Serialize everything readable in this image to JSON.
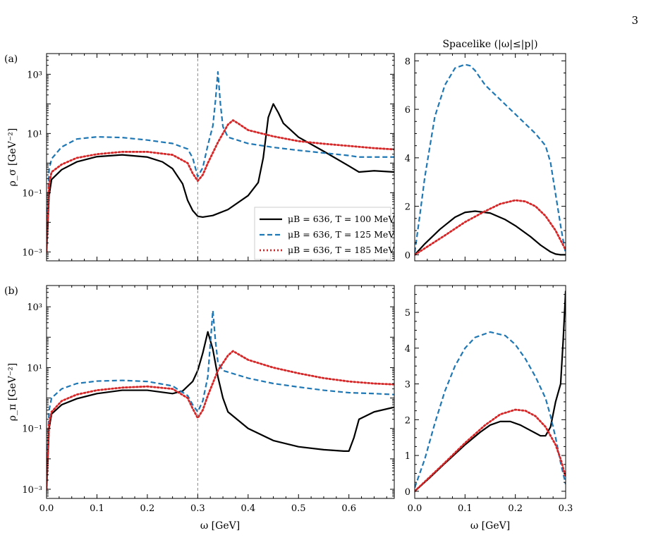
{
  "page_number": "3",
  "colors": {
    "black": "#000000",
    "blue": "#1f77b4",
    "red": "#d62728",
    "vline": "#888888"
  },
  "chart_data": [
    {
      "type": "line",
      "panel": "(a)",
      "title": "",
      "xlabel": "",
      "ylabel": "ρ_σ [GeV⁻²]",
      "yscale": "log",
      "xlim": [
        0.0,
        0.69
      ],
      "ylim": [
        0.0005,
        5000
      ],
      "xticks": [
        0.0,
        0.1,
        0.2,
        0.3,
        0.4,
        0.5,
        0.6
      ],
      "yticks": [
        {
          "v": 0.001,
          "l": "10⁻³"
        },
        {
          "v": 0.1,
          "l": "10⁻¹"
        },
        {
          "v": 10,
          "l": "10¹"
        },
        {
          "v": 1000,
          "l": "10³"
        }
      ],
      "xticklabels_shown": false,
      "vline": 0.3,
      "legend": "center-right",
      "series": [
        {
          "name": "μB = 636,  T = 100 MeV",
          "color": "#000000",
          "dash": "solid",
          "x": [
            0.0,
            0.005,
            0.01,
            0.03,
            0.06,
            0.1,
            0.15,
            0.2,
            0.23,
            0.25,
            0.27,
            0.28,
            0.29,
            0.3,
            0.31,
            0.33,
            0.36,
            0.4,
            0.42,
            0.43,
            0.44,
            0.45,
            0.46,
            0.47,
            0.5,
            0.55,
            0.6,
            0.62,
            0.65,
            0.69
          ],
          "y": [
            0.001,
            0.08,
            0.28,
            0.6,
            1.1,
            1.65,
            1.9,
            1.6,
            1.1,
            0.65,
            0.2,
            0.055,
            0.025,
            0.016,
            0.015,
            0.017,
            0.027,
            0.08,
            0.22,
            1.5,
            35,
            100,
            50,
            22,
            7.5,
            2.5,
            0.8,
            0.5,
            0.55,
            0.5
          ]
        },
        {
          "name": "μB = 636,  T = 125 MeV",
          "color": "#1f77b4",
          "dash": "dashed",
          "x": [
            0.0,
            0.005,
            0.01,
            0.03,
            0.06,
            0.1,
            0.15,
            0.2,
            0.25,
            0.28,
            0.29,
            0.3,
            0.31,
            0.32,
            0.33,
            0.335,
            0.34,
            0.345,
            0.35,
            0.36,
            0.4,
            0.45,
            0.5,
            0.55,
            0.6,
            0.62,
            0.65,
            0.69
          ],
          "y": [
            0.002,
            0.6,
            1.4,
            3.5,
            6.5,
            7.7,
            7.3,
            6.0,
            4.6,
            3.0,
            1.5,
            0.35,
            0.7,
            4.0,
            18,
            120,
            1200,
            100,
            17,
            7.5,
            4.6,
            3.4,
            2.7,
            2.2,
            1.8,
            1.6,
            1.6,
            1.6
          ]
        },
        {
          "name": "μB = 636,  T = 185 MeV",
          "color": "#d62728",
          "dash": "dotted",
          "x": [
            0.0,
            0.005,
            0.01,
            0.03,
            0.06,
            0.1,
            0.15,
            0.2,
            0.25,
            0.28,
            0.29,
            0.3,
            0.31,
            0.32,
            0.34,
            0.36,
            0.37,
            0.38,
            0.4,
            0.45,
            0.5,
            0.55,
            0.6,
            0.65,
            0.69
          ],
          "y": [
            0.001,
            0.2,
            0.5,
            0.9,
            1.5,
            2.0,
            2.4,
            2.4,
            1.9,
            1.0,
            0.45,
            0.25,
            0.4,
            1.0,
            5.0,
            20,
            28,
            22,
            13,
            8.0,
            5.5,
            4.5,
            3.8,
            3.2,
            2.9
          ]
        }
      ]
    },
    {
      "type": "line",
      "panel": "(a) right",
      "title": "Spacelike (|ω|≤|p|)",
      "xlabel": "",
      "ylabel": "",
      "yscale": "linear",
      "xlim": [
        0.0,
        0.3
      ],
      "ylim": [
        -0.25,
        8.3
      ],
      "xticks": [
        0.0,
        0.1,
        0.2,
        0.3
      ],
      "yticks": [
        {
          "v": 0,
          "l": "0"
        },
        {
          "v": 2,
          "l": "2"
        },
        {
          "v": 4,
          "l": "4"
        },
        {
          "v": 6,
          "l": "6"
        },
        {
          "v": 8,
          "l": "8"
        }
      ],
      "xticklabels_shown": false,
      "series": [
        {
          "color": "#000000",
          "dash": "solid",
          "x": [
            0.0,
            0.02,
            0.05,
            0.08,
            0.1,
            0.12,
            0.15,
            0.18,
            0.2,
            0.23,
            0.25,
            0.27,
            0.28,
            0.29,
            0.3
          ],
          "y": [
            0.0,
            0.45,
            1.05,
            1.55,
            1.75,
            1.8,
            1.72,
            1.45,
            1.2,
            0.75,
            0.4,
            0.12,
            0.03,
            0.0,
            0.0
          ]
        },
        {
          "color": "#1f77b4",
          "dash": "dashed",
          "x": [
            0.0,
            0.01,
            0.02,
            0.04,
            0.06,
            0.08,
            0.1,
            0.11,
            0.12,
            0.14,
            0.16,
            0.2,
            0.24,
            0.26,
            0.27,
            0.28,
            0.29,
            0.295,
            0.3
          ],
          "y": [
            0.1,
            1.6,
            3.2,
            5.7,
            7.0,
            7.7,
            7.85,
            7.8,
            7.6,
            7.0,
            6.6,
            5.8,
            5.0,
            4.5,
            3.8,
            2.5,
            1.2,
            0.6,
            0.05
          ]
        },
        {
          "color": "#d62728",
          "dash": "dotted",
          "x": [
            0.0,
            0.03,
            0.06,
            0.1,
            0.14,
            0.17,
            0.2,
            0.22,
            0.24,
            0.26,
            0.28,
            0.29,
            0.3
          ],
          "y": [
            0.0,
            0.4,
            0.8,
            1.35,
            1.8,
            2.1,
            2.25,
            2.2,
            2.0,
            1.6,
            1.0,
            0.6,
            0.2
          ]
        }
      ]
    },
    {
      "type": "line",
      "panel": "(b)",
      "title": "",
      "xlabel": "ω [GeV]",
      "ylabel": "ρ_π [GeV⁻²]",
      "yscale": "log",
      "xlim": [
        0.0,
        0.69
      ],
      "ylim": [
        0.0005,
        5000
      ],
      "xticks": [
        0.0,
        0.1,
        0.2,
        0.3,
        0.4,
        0.5,
        0.6
      ],
      "yticks": [
        {
          "v": 0.001,
          "l": "10⁻³"
        },
        {
          "v": 0.1,
          "l": "10⁻¹"
        },
        {
          "v": 10,
          "l": "10¹"
        },
        {
          "v": 1000,
          "l": "10³"
        }
      ],
      "xticklabels_shown": true,
      "vline": 0.3,
      "series": [
        {
          "color": "#000000",
          "dash": "solid",
          "x": [
            0.0,
            0.005,
            0.01,
            0.03,
            0.06,
            0.1,
            0.15,
            0.2,
            0.25,
            0.27,
            0.29,
            0.3,
            0.31,
            0.32,
            0.33,
            0.34,
            0.35,
            0.36,
            0.4,
            0.45,
            0.5,
            0.55,
            0.59,
            0.6,
            0.61,
            0.62,
            0.65,
            0.69
          ],
          "y": [
            0.001,
            0.1,
            0.3,
            0.6,
            0.95,
            1.4,
            1.8,
            1.8,
            1.4,
            1.7,
            3.5,
            8.0,
            30,
            150,
            40,
            5.0,
            1.0,
            0.35,
            0.1,
            0.04,
            0.025,
            0.02,
            0.018,
            0.018,
            0.05,
            0.2,
            0.35,
            0.5
          ]
        },
        {
          "color": "#1f77b4",
          "dash": "dashed",
          "x": [
            0.0,
            0.005,
            0.01,
            0.03,
            0.06,
            0.1,
            0.15,
            0.2,
            0.25,
            0.28,
            0.29,
            0.3,
            0.31,
            0.32,
            0.325,
            0.33,
            0.335,
            0.34,
            0.35,
            0.4,
            0.45,
            0.5,
            0.55,
            0.6,
            0.65,
            0.69
          ],
          "y": [
            0.002,
            0.4,
            1.0,
            2.0,
            3.0,
            3.6,
            3.8,
            3.5,
            2.5,
            1.2,
            0.6,
            0.35,
            0.8,
            5.0,
            60,
            750,
            80,
            15,
            8.0,
            4.5,
            3.0,
            2.3,
            1.8,
            1.5,
            1.4,
            1.3
          ]
        },
        {
          "color": "#d62728",
          "dash": "dotted",
          "x": [
            0.0,
            0.005,
            0.01,
            0.03,
            0.06,
            0.1,
            0.15,
            0.2,
            0.25,
            0.28,
            0.29,
            0.3,
            0.31,
            0.32,
            0.34,
            0.36,
            0.37,
            0.38,
            0.4,
            0.45,
            0.5,
            0.55,
            0.6,
            0.65,
            0.69
          ],
          "y": [
            0.001,
            0.15,
            0.35,
            0.8,
            1.3,
            1.8,
            2.2,
            2.4,
            2.0,
            1.0,
            0.45,
            0.22,
            0.4,
            1.2,
            8.0,
            25,
            35,
            28,
            18,
            10,
            6.5,
            4.5,
            3.5,
            3.0,
            2.8
          ]
        }
      ]
    },
    {
      "type": "line",
      "panel": "(b) right",
      "title": "",
      "xlabel": "ω [GeV]",
      "ylabel": "",
      "yscale": "linear",
      "xlim": [
        0.0,
        0.3
      ],
      "ylim": [
        -0.2,
        5.75
      ],
      "xticks": [
        0.0,
        0.1,
        0.2,
        0.3
      ],
      "yticks": [
        {
          "v": 0,
          "l": "0"
        },
        {
          "v": 1,
          "l": "1"
        },
        {
          "v": 2,
          "l": "2"
        },
        {
          "v": 3,
          "l": "3"
        },
        {
          "v": 4,
          "l": "4"
        },
        {
          "v": 5,
          "l": "5"
        }
      ],
      "xticklabels_shown": true,
      "series": [
        {
          "color": "#000000",
          "dash": "solid",
          "x": [
            0.0,
            0.03,
            0.06,
            0.1,
            0.13,
            0.15,
            0.17,
            0.19,
            0.21,
            0.23,
            0.25,
            0.26,
            0.27,
            0.28,
            0.29,
            0.295,
            0.3
          ],
          "y": [
            0.0,
            0.38,
            0.78,
            1.3,
            1.65,
            1.85,
            1.95,
            1.95,
            1.85,
            1.7,
            1.55,
            1.55,
            1.8,
            2.5,
            3.0,
            4.2,
            5.6
          ]
        },
        {
          "color": "#1f77b4",
          "dash": "dashed",
          "x": [
            0.0,
            0.02,
            0.04,
            0.06,
            0.08,
            0.1,
            0.12,
            0.15,
            0.18,
            0.2,
            0.22,
            0.24,
            0.26,
            0.27,
            0.28,
            0.29,
            0.3
          ],
          "y": [
            0.1,
            0.9,
            1.9,
            2.8,
            3.5,
            4.0,
            4.3,
            4.45,
            4.35,
            4.1,
            3.7,
            3.2,
            2.6,
            2.1,
            1.5,
            0.8,
            0.2
          ]
        },
        {
          "color": "#d62728",
          "dash": "dotted",
          "x": [
            0.0,
            0.03,
            0.06,
            0.1,
            0.14,
            0.17,
            0.2,
            0.22,
            0.24,
            0.26,
            0.28,
            0.29,
            0.3
          ],
          "y": [
            0.0,
            0.4,
            0.8,
            1.35,
            1.85,
            2.15,
            2.28,
            2.25,
            2.1,
            1.8,
            1.3,
            0.9,
            0.4
          ]
        }
      ]
    }
  ]
}
